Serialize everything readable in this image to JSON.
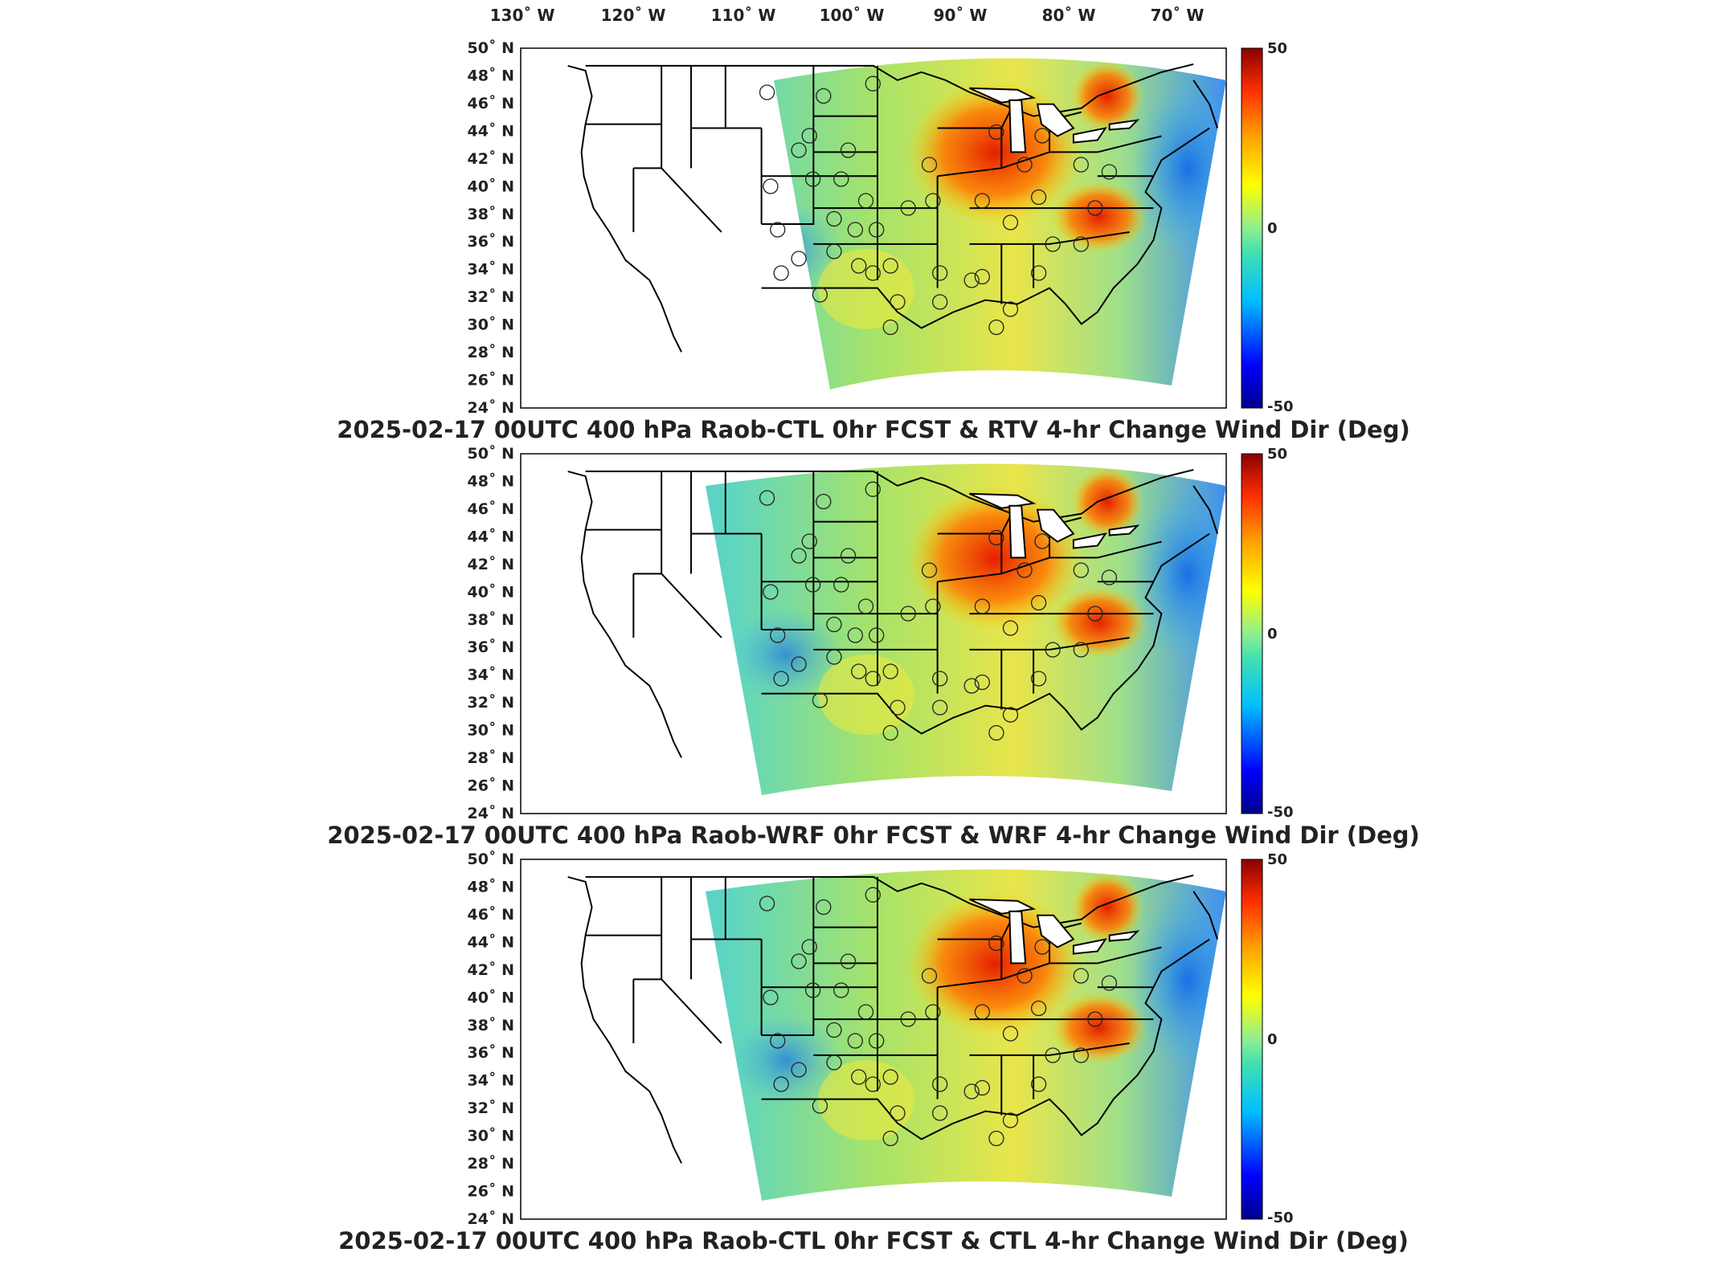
{
  "figure": {
    "lon_labels": [
      "130˚ W",
      "120˚ W",
      "110˚ W",
      "100˚ W",
      "90˚ W",
      "80˚ W",
      "70˚ W"
    ],
    "lat_labels": [
      "50˚ N",
      "48˚ N",
      "46˚ N",
      "44˚ N",
      "42˚ N",
      "40˚ N",
      "38˚ N",
      "36˚ N",
      "34˚ N",
      "32˚ N",
      "30˚ N",
      "28˚ N",
      "26˚ N",
      "24˚ N"
    ],
    "colorbar": {
      "max_label": "50",
      "mid_label": "0",
      "min_label": "-50",
      "colors": [
        "#00008b",
        "#0000ff",
        "#00bfff",
        "#40e0b0",
        "#90ee90",
        "#ffff00",
        "#ffa500",
        "#ff3000",
        "#8b0000"
      ]
    }
  },
  "panels": [
    {
      "title": "2025-02-17 00UTC 400 hPa Raob-CTL 0hr FCST & RTV 4-hr Change Wind Dir (Deg)"
    },
    {
      "title": "2025-02-17 00UTC 400 hPa Raob-WRF 0hr FCST & WRF 4-hr Change Wind Dir (Deg)"
    },
    {
      "title": "2025-02-17 00UTC 400 hPa Raob-CTL 0hr FCST & CTL 4-hr Change Wind Dir (Deg)"
    }
  ]
}
